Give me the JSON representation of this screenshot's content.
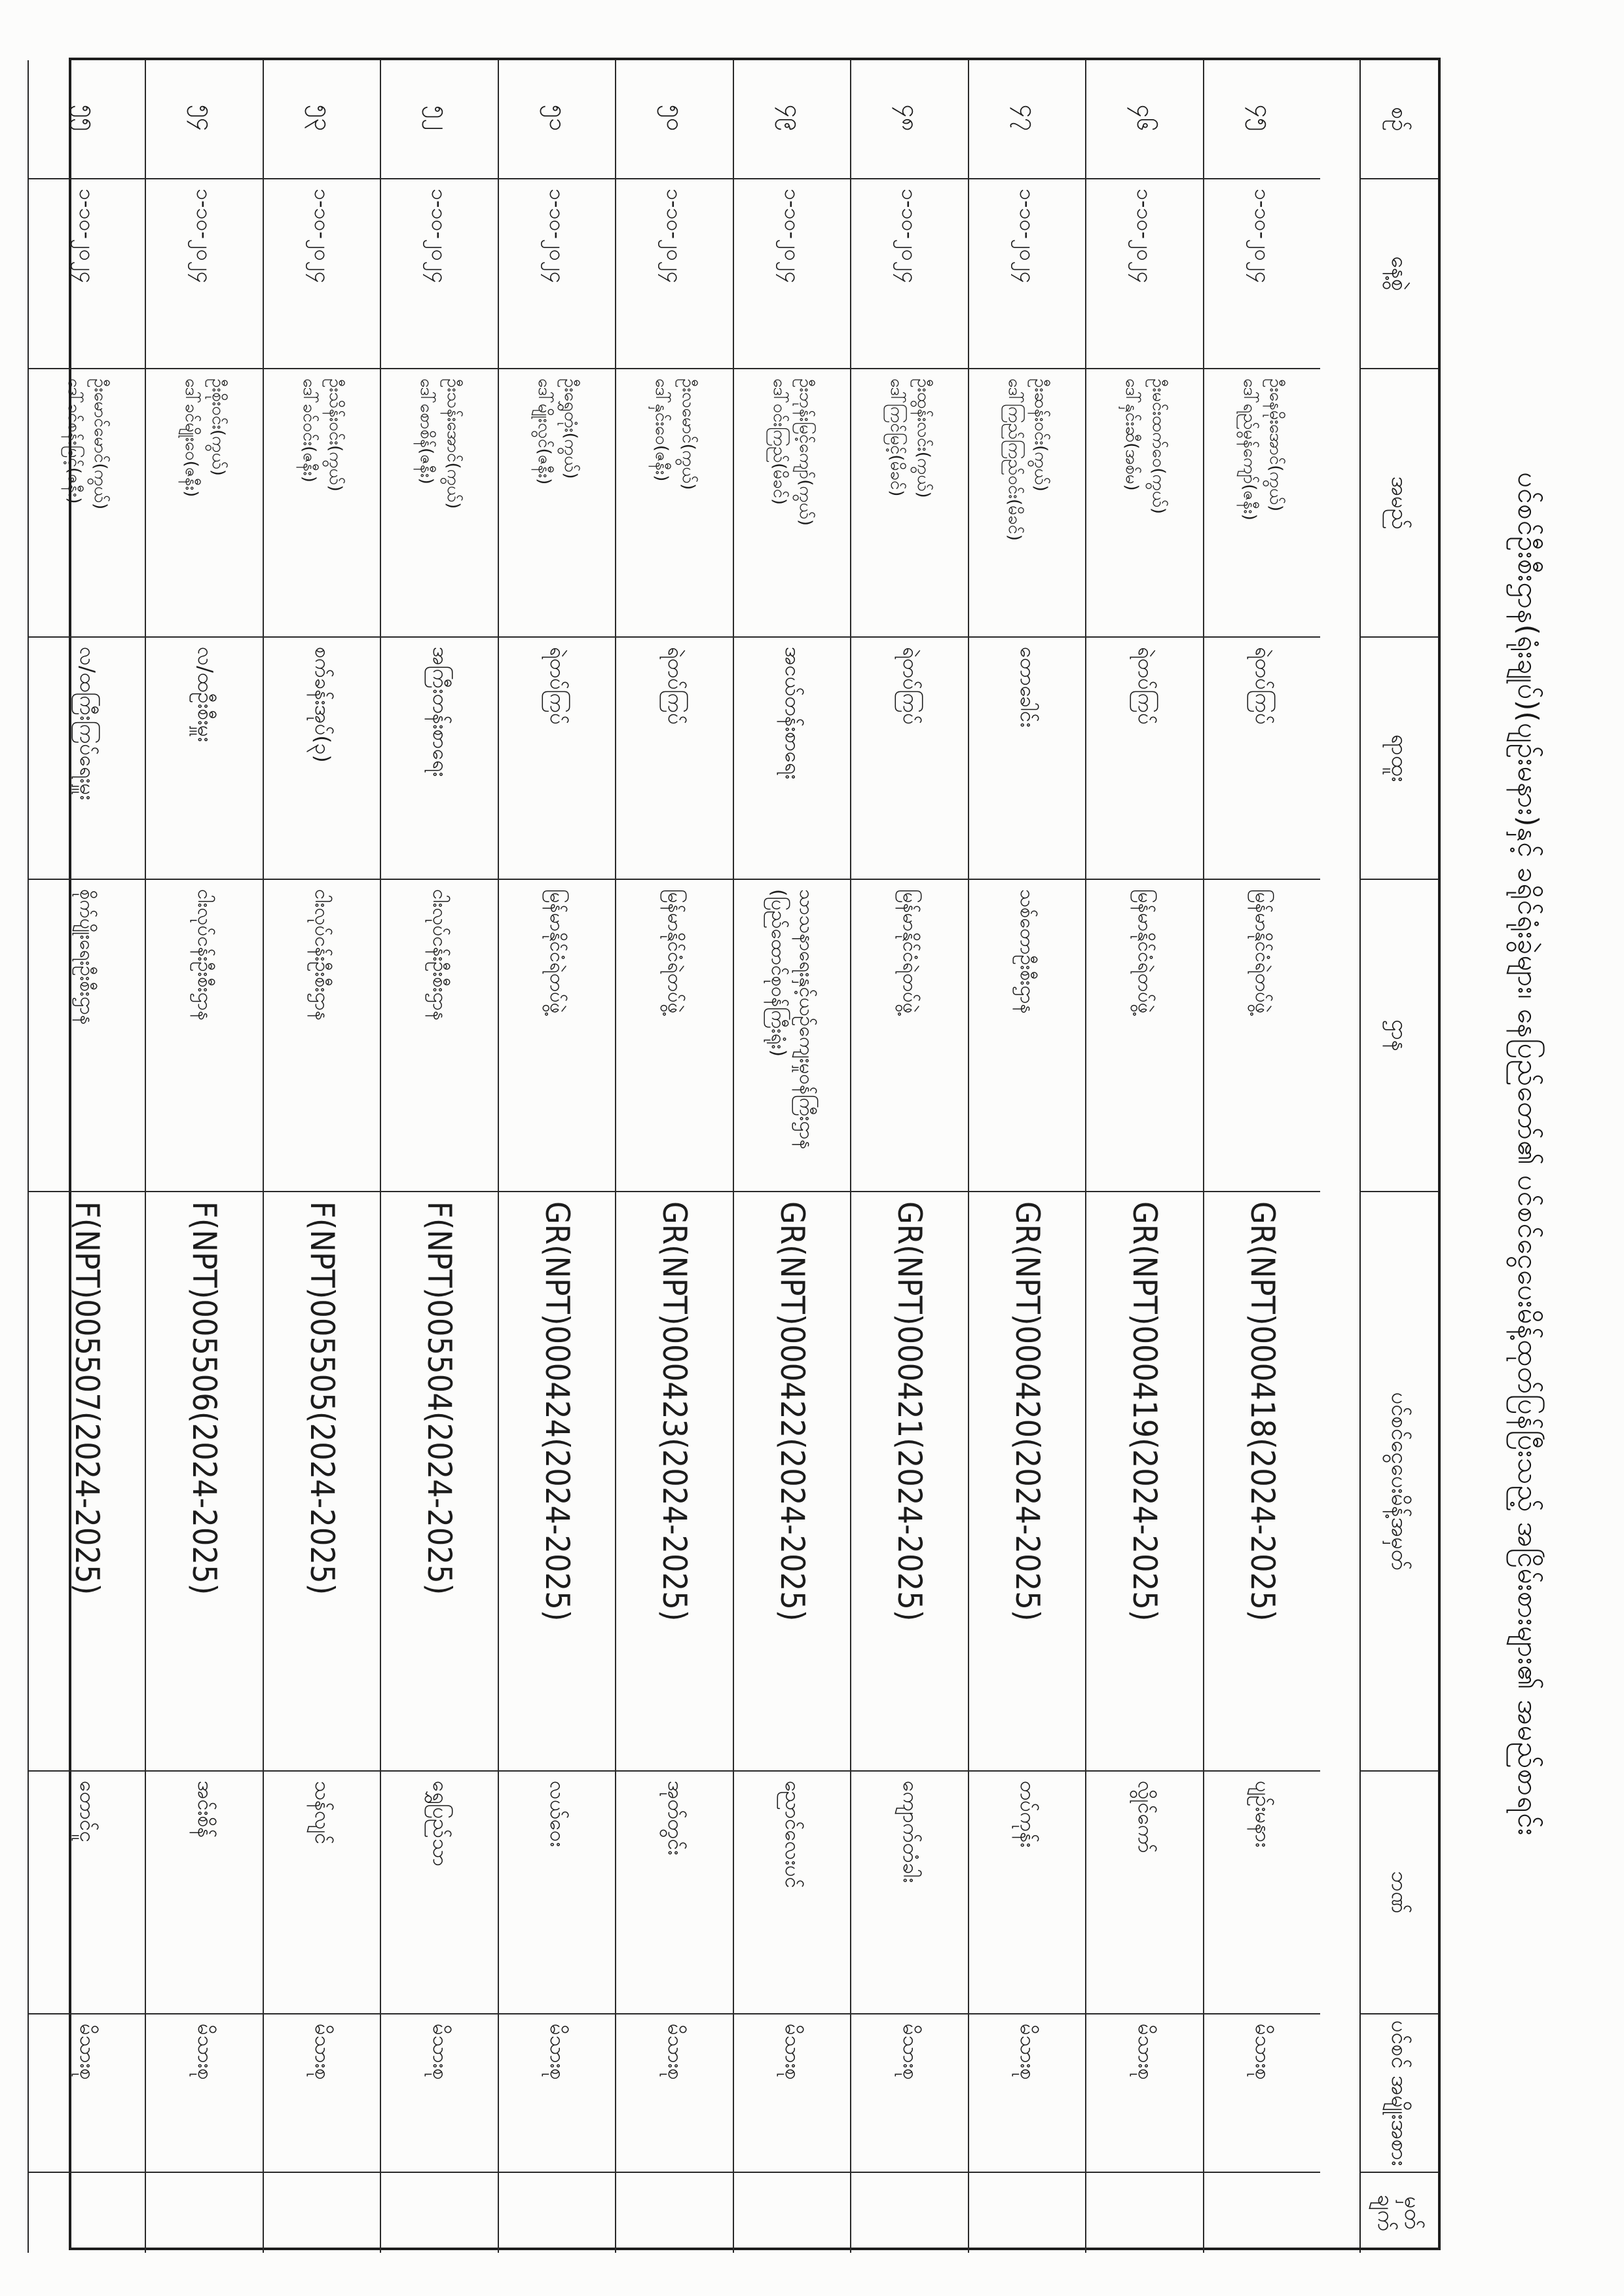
{
  "document": {
    "title": "ပင်စင်ဦးစီးဌာန(ရုံးချုပ်)(ပျဉ်းမနား)နှင့် ခရိုင်ရုံးခွဲများ၊ နေပြည်တော်၏ ပင်စင်ငွေပေးမိန့်ထုတ်ပြန်ပြီးသည့် အငြိမ်းစားများ၏ အမည်စာရင်း"
  },
  "table": {
    "headers": [
      "စဉ်",
      "နေ့စွဲ",
      "အမည်",
      "ရာထူး",
      "ဌာန",
      "ပင်စင်ငွေပေးမိန့်အမှတ်",
      "ဘဏ်",
      "ပင်စင် အမျိုးအစား",
      "မှတ် ချက်"
    ],
    "rows": [
      {
        "serial": "၄၅",
        "date": "၁-၁၀-၂၀၂၄",
        "name_line1": "ဦးနေမိုးအောင်(ကွယ်)",
        "name_line2": "ဒေါ်ရည်မွန်ကျော်(ဇနီး)",
        "position": "ရဲတပ်ကြပ်",
        "department_line1": "မြန်မာနိုင်ငံရဲတပ်ဖွဲ့",
        "department_line2": "",
        "pension_order_no": "GR(NPT)000418(2024-2025)",
        "bank": "ပျဉ်းမနား",
        "pension_type": "မိသားစု",
        "remark": ""
      },
      {
        "serial": "၄၆",
        "date": "၁-၁၀-၂၀၂၄",
        "name_line1": "ဦးမင်းထက်ဝေ(ကွယ်)",
        "name_line2": "ဒေါ်နှင်းဆီ(အစ်မ)",
        "position": "ရဲတပ်ကြပ်",
        "department_line1": "မြန်မာနိုင်ငံရဲတပ်ဖွဲ့",
        "department_line2": "",
        "pension_order_no": "GR(NPT)000419(2024-2025)",
        "bank": "လွိုင်ကော်",
        "pension_type": "မိသားစု",
        "remark": ""
      },
      {
        "serial": "၄၇",
        "date": "၁-၁၀-၂၀၂၄",
        "name_line1": "ဦးဆန်းဝင်း(ကွယ်)",
        "name_line2": "ဒေါ်ကြည်ကြည်ဝင်း(မိခင်)",
        "position": "တောခေါင်း",
        "department_line1": "သစ်တောဦးစီးဌာန",
        "department_line2": "",
        "pension_order_no": "GR(NPT)000420(2024-2025)",
        "bank": "တပ်ကုန်း",
        "pension_type": "မိသားစု",
        "remark": ""
      },
      {
        "serial": "၄၈",
        "date": "၁-၁၀-၂၀၂၄",
        "name_line1": "ဦးထွန်းလင်း(ကွယ်)",
        "name_line2": "ဒေါ်ကြင်မြင့်(မိခင်)",
        "position": "ရဲတပ်ကြပ်",
        "department_line1": "မြန်မာနိုင်ငံရဲတပ်ဖွဲ့",
        "department_line2": "",
        "pension_order_no": "GR(NPT)000421(2024-2025)",
        "bank": "ကျောက်တံခါး",
        "pension_type": "မိသားစု",
        "remark": ""
      },
      {
        "serial": "၄၉",
        "date": "၁-၁၀-၂၀၂၄",
        "name_line1": "ဦးဘုန်းမြင့်ကျော်(ကွယ်)",
        "name_line2": "ဒေါ်ဝင်းကြည်(မိခင်)",
        "position": "အငယ်တန်းစာရေး",
        "department_line1": "သာသနာရေးနှင့်ယဉ်ကျေးမှုဝန်ကြီးဌာန",
        "department_line2": "(ပြည်ထောင်စုဝန်ကြီးရုံး)",
        "pension_order_no": "GR(NPT)000422(2024-2025)",
        "bank": "ညောင်လေးပင်",
        "pension_type": "မိသားစု",
        "remark": ""
      },
      {
        "serial": "၅၀",
        "date": "၁-၁၀-၂၀၂၄",
        "name_line1": "ဦးလမောင်(ကွယ်)",
        "name_line2": "ဒေါ်နှင်းဝေ(ဇနီး)",
        "position": "ရဲတပ်ကြပ်",
        "department_line1": "မြန်မာနိုင်ငံရဲတပ်ဖွဲ့",
        "department_line2": "",
        "pension_order_no": "GR(NPT)000423(2024-2025)",
        "bank": "အုတ်တွင်း",
        "pension_type": "မိသားစု",
        "remark": ""
      },
      {
        "serial": "၅၁",
        "date": "၁-၁၀-၂၀၂၄",
        "name_line1": "ဦးရွှေတုံး(ကွယ်)",
        "name_line2": "ဒေါ်မျိုးလွင်(ဇနီး)",
        "position": "ရဲတပ်ကြပ်",
        "department_line1": "မြန်မာနိုင်ငံရဲတပ်ဖွဲ့",
        "department_line2": "",
        "pension_order_no": "GR(NPT)000424(2024-2025)",
        "bank": "လယ်ဝေး",
        "pension_type": "မိသားစု",
        "remark": ""
      },
      {
        "serial": "၅၂",
        "date": "၁-၁၀-၂၀၂၄",
        "name_line1": "ဦးသန်းအောင်(ကွယ်)",
        "name_line2": "ဒေါ်စောစိန်(ဇနီး)",
        "position": "အကြီးတန်းစာရေး",
        "department_line1": "ငါးလုပ်ငန်းဦးစီးဌာန",
        "department_line2": "",
        "pension_order_no": "F(NPT)005504(2024-2025)",
        "bank": "ရွှေပြည်သာ",
        "pension_type": "မိသားစု",
        "remark": ""
      },
      {
        "serial": "၅၃",
        "date": "၁-၁၀-၂၀၂၄",
        "name_line1": "ဦးသိန်းဝင်း(ကွယ်)",
        "name_line2": "ဒေါ်ခင်ဝင်း(ဇနီး)",
        "position": "စက်ခန်းအုပ်(၃)",
        "department_line1": "ငါးလုပ်ငန်းဦးစီးဌာန",
        "department_line2": "",
        "pension_order_no": "F(NPT)005505(2024-2025)",
        "bank": "သန်လျင်",
        "pension_type": "မိသားစု",
        "remark": ""
      },
      {
        "serial": "၅၄",
        "date": "၁-၁၀-၂၀၂၄",
        "name_line1": "ဦးစိုးဝင်း(ကွယ်)",
        "name_line2": "ဒေါ်ခင်မျိုးဝေ(ဇနီး)",
        "position": "လ/ထဦးစီးမှူး",
        "department_line1": "ငါးလုပ်ငန်းဦးစီးဌာန",
        "department_line2": "",
        "pension_order_no": "F(NPT)005506(2024-2025)",
        "bank": "အင်းစိန်",
        "pension_type": "မိသားစု",
        "remark": ""
      },
      {
        "serial": "၅၅",
        "date": "၁-၁၀-၂၀၂၄",
        "name_line1": "ဦးမောင်မောင်(ကွယ်)",
        "name_line2": "ဒေါ်ခင်စန်းမြင့်(ဇနီး)",
        "position": "လ/ထကြီးကြပ်ရေးမှူး",
        "department_line1": "စိုက်ပျိုးရေးဦးစီးဌာန",
        "department_line2": "",
        "pension_order_no": "F(NPT)005507(2024-2025)",
        "bank": "တောင်ငူ",
        "pension_type": "မိသားစု",
        "remark": ""
      }
    ]
  }
}
